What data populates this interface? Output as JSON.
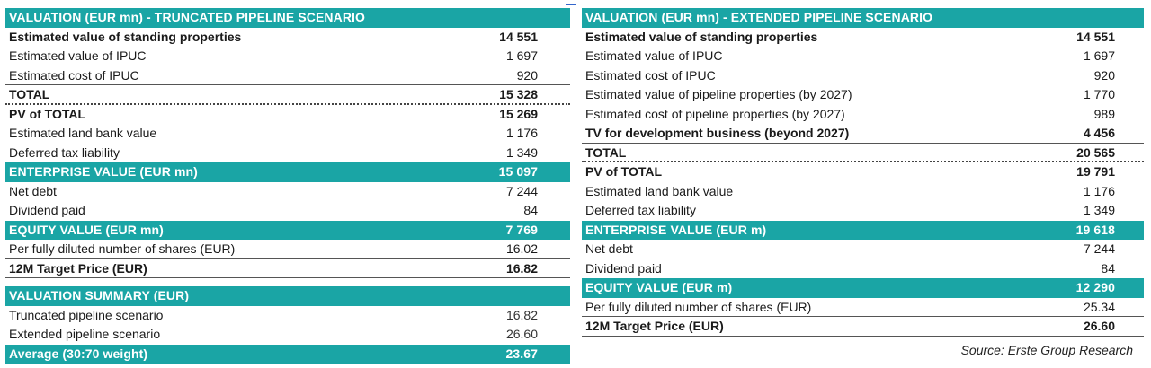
{
  "left": {
    "rows": [
      {
        "label": "VALUATION (EUR mn) - TRUNCATED PIPELINE SCENARIO",
        "value": "",
        "style": "hdr"
      },
      {
        "label": "Estimated value of standing properties",
        "value": "14 551",
        "style": "bold"
      },
      {
        "label": "Estimated value of IPUC",
        "value": "1 697",
        "style": ""
      },
      {
        "label": "Estimated cost of IPUC",
        "value": "920",
        "style": "ul"
      },
      {
        "label": "TOTAL",
        "value": "15 328",
        "style": "bold dot"
      },
      {
        "label": "PV of TOTAL",
        "value": "15 269",
        "style": "bold"
      },
      {
        "label": "Estimated land bank value",
        "value": "1 176",
        "style": ""
      },
      {
        "label": "Deferred tax liability",
        "value": "1 349",
        "style": ""
      },
      {
        "label": "ENTERPRISE VALUE (EUR mn)",
        "value": "15 097",
        "style": "hdr"
      },
      {
        "label": "Net debt",
        "value": "7 244",
        "style": ""
      },
      {
        "label": "Dividend paid",
        "value": "84",
        "style": ""
      },
      {
        "label": "EQUITY VALUE (EUR mn)",
        "value": "7 769",
        "style": "hdr"
      },
      {
        "label": "Per fully diluted number of shares (EUR)",
        "value": "16.02",
        "style": "ul"
      },
      {
        "label": "12M Target Price (EUR)",
        "value": "16.82",
        "style": "bold ul"
      }
    ]
  },
  "summary": {
    "rows": [
      {
        "label": "VALUATION SUMMARY (EUR)",
        "value": "",
        "style": "hdr"
      },
      {
        "label": "Truncated pipeline scenario",
        "value": "16.82",
        "style": "gray"
      },
      {
        "label": "Extended pipeline scenario",
        "value": "26.60",
        "style": "gray"
      },
      {
        "label": "Average (30:70 weight)",
        "value": "23.67",
        "style": "hdr"
      }
    ]
  },
  "right": {
    "rows": [
      {
        "label": "VALUATION (EUR mn) - EXTENDED PIPELINE SCENARIO",
        "value": "",
        "style": "hdr"
      },
      {
        "label": "Estimated value of standing properties",
        "value": "14 551",
        "style": "bold"
      },
      {
        "label": "Estimated value of IPUC",
        "value": "1 697",
        "style": ""
      },
      {
        "label": "Estimated cost of IPUC",
        "value": "920",
        "style": ""
      },
      {
        "label": "Estimated value of pipeline properties (by 2027)",
        "value": "1 770",
        "style": ""
      },
      {
        "label": "Estimated cost of pipeline properties (by 2027)",
        "value": "989",
        "style": ""
      },
      {
        "label": "TV for development business (beyond 2027)",
        "value": "4 456",
        "style": "bold ul"
      },
      {
        "label": "TOTAL",
        "value": "20 565",
        "style": "bold dot"
      },
      {
        "label": "PV of TOTAL",
        "value": "19 791",
        "style": "bold"
      },
      {
        "label": "Estimated land bank value",
        "value": "1 176",
        "style": ""
      },
      {
        "label": "Deferred tax liability",
        "value": "1 349",
        "style": ""
      },
      {
        "label": "ENTERPRISE VALUE (EUR m)",
        "value": "19 618",
        "style": "hdr"
      },
      {
        "label": "Net debt",
        "value": "7 244",
        "style": ""
      },
      {
        "label": "Dividend paid",
        "value": "84",
        "style": ""
      },
      {
        "label": "EQUITY VALUE (EUR m)",
        "value": "12 290",
        "style": "hdr"
      },
      {
        "label": "Per fully diluted number of shares (EUR)",
        "value": "25.34",
        "style": "ul"
      },
      {
        "label": "12M Target Price (EUR)",
        "value": "26.60",
        "style": "bold ul"
      }
    ]
  },
  "source": "Source: Erste Group Research",
  "colors": {
    "header_bg": "#1aa5a5",
    "header_text": "#ffffff"
  }
}
